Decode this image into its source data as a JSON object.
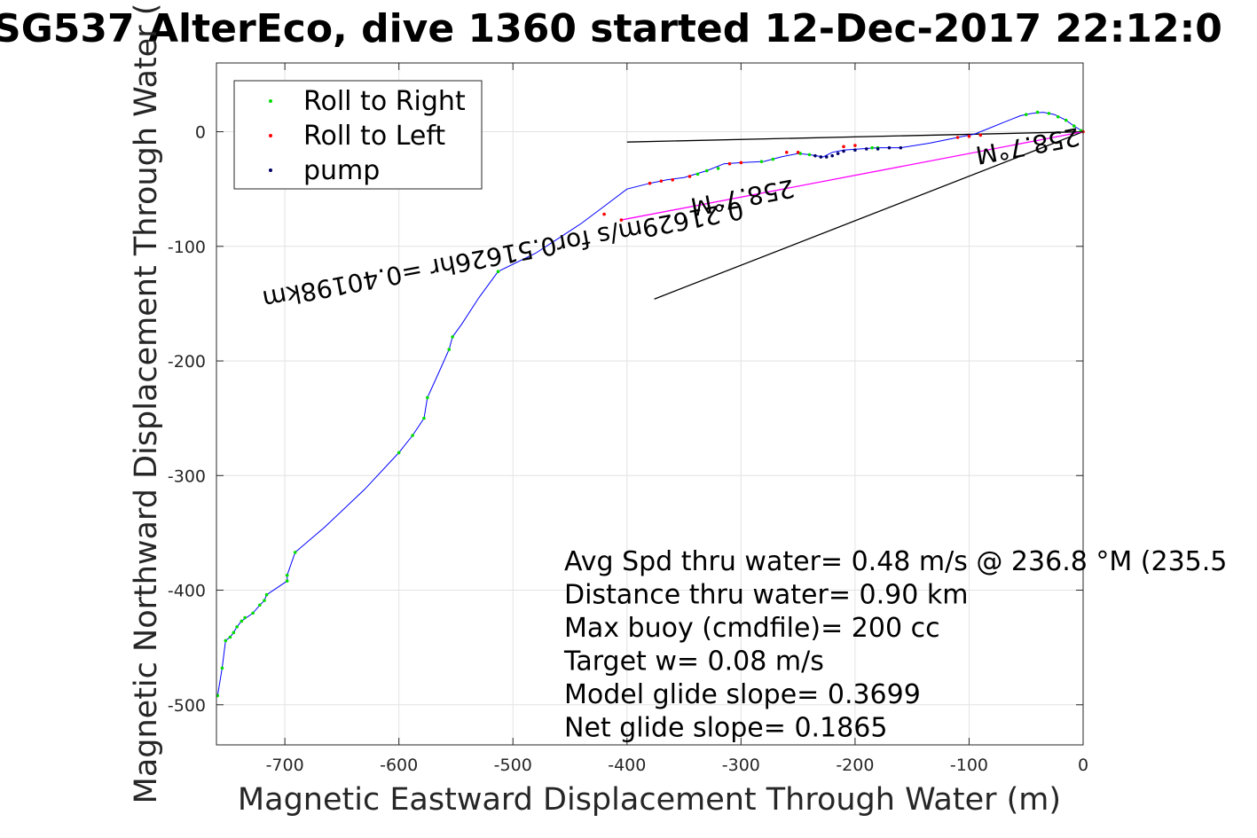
{
  "chart_data": {
    "type": "line",
    "title": "SG537 AlterEco, dive 1360 started 12-Dec-2017 22:12:0",
    "xlabel": "Magnetic Eastward Displacement Through Water (m)",
    "ylabel": "Magnetic Northward Displacement Through Water (",
    "xlim": [
      -760,
      0
    ],
    "ylim": [
      -535,
      60
    ],
    "xticks": [
      -700,
      -600,
      -500,
      -400,
      -300,
      -200,
      -100,
      0
    ],
    "yticks": [
      0,
      -100,
      -200,
      -300,
      -400,
      -500
    ],
    "grid": true,
    "legend_position": "top-left",
    "legend": [
      {
        "label": "Roll to Right",
        "color": "#00dd00"
      },
      {
        "label": "Roll to Left",
        "color": "#ff0000"
      },
      {
        "label": "pump",
        "color": "#000066"
      }
    ],
    "track": {
      "name": "track",
      "color": "#0000ff",
      "points": [
        [
          0,
          0
        ],
        [
          -8,
          5
        ],
        [
          -15,
          10
        ],
        [
          -25,
          15
        ],
        [
          -35,
          17
        ],
        [
          -45,
          16
        ],
        [
          -55,
          14
        ],
        [
          -70,
          8
        ],
        [
          -85,
          2
        ],
        [
          -95,
          -2
        ],
        [
          -110,
          -5
        ],
        [
          -135,
          -10
        ],
        [
          -160,
          -14
        ],
        [
          -180,
          -14
        ],
        [
          -195,
          -15
        ],
        [
          -210,
          -16
        ],
        [
          -220,
          -18
        ],
        [
          -228,
          -22
        ],
        [
          -240,
          -20
        ],
        [
          -250,
          -19
        ],
        [
          -265,
          -22
        ],
        [
          -280,
          -26
        ],
        [
          -300,
          -27
        ],
        [
          -315,
          -28
        ],
        [
          -330,
          -34
        ],
        [
          -350,
          -40
        ],
        [
          -365,
          -42
        ],
        [
          -380,
          -45
        ],
        [
          -400,
          -50
        ],
        [
          -420,
          -65
        ],
        [
          -440,
          -80
        ],
        [
          -460,
          -93
        ],
        [
          -480,
          -106
        ],
        [
          -513,
          -122
        ],
        [
          -530,
          -145
        ],
        [
          -545,
          -168
        ],
        [
          -553,
          -179
        ],
        [
          -556,
          -190
        ],
        [
          -565,
          -210
        ],
        [
          -575,
          -232
        ],
        [
          -578,
          -250
        ],
        [
          -588,
          -265
        ],
        [
          -600,
          -280
        ],
        [
          -630,
          -312
        ],
        [
          -665,
          -345
        ],
        [
          -691,
          -367
        ],
        [
          -698,
          -387
        ],
        [
          -698,
          -392
        ],
        [
          -716,
          -404
        ],
        [
          -718,
          -409
        ],
        [
          -722,
          -413
        ],
        [
          -728,
          -420
        ],
        [
          -738,
          -427
        ],
        [
          -742,
          -432
        ],
        [
          -745,
          -437
        ],
        [
          -748,
          -441
        ],
        [
          -752,
          -444
        ],
        [
          -755,
          -468
        ],
        [
          -759,
          -492
        ]
      ]
    },
    "roll_right_points": [
      [
        -2,
        1
      ],
      [
        -8,
        5
      ],
      [
        -15,
        10
      ],
      [
        -22,
        13
      ],
      [
        -30,
        16
      ],
      [
        -40,
        17
      ],
      [
        -50,
        15
      ],
      [
        -180,
        -14
      ],
      [
        -185,
        -14
      ],
      [
        -240,
        -20
      ],
      [
        -248,
        -19
      ],
      [
        -272,
        -24
      ],
      [
        -282,
        -26
      ],
      [
        -320,
        -32
      ],
      [
        -330,
        -34
      ],
      [
        -338,
        -37
      ],
      [
        -513,
        -122
      ],
      [
        -553,
        -179
      ],
      [
        -556,
        -190
      ],
      [
        -575,
        -232
      ],
      [
        -578,
        -250
      ],
      [
        -588,
        -265
      ],
      [
        -600,
        -280
      ],
      [
        -691,
        -367
      ],
      [
        -698,
        -387
      ],
      [
        -698,
        -392
      ],
      [
        -716,
        -404
      ],
      [
        -718,
        -409
      ],
      [
        -722,
        -413
      ],
      [
        -728,
        -420
      ],
      [
        -735,
        -424
      ],
      [
        -738,
        -427
      ],
      [
        -742,
        -432
      ],
      [
        -745,
        -437
      ],
      [
        -748,
        -441
      ],
      [
        -752,
        -444
      ],
      [
        -755,
        -468
      ],
      [
        -759,
        -492
      ]
    ],
    "roll_left_points": [
      [
        -90,
        -3
      ],
      [
        -100,
        -4
      ],
      [
        -110,
        -5
      ],
      [
        -300,
        -27
      ],
      [
        -310,
        -28
      ],
      [
        -345,
        -39
      ],
      [
        -360,
        -42
      ],
      [
        -370,
        -43
      ],
      [
        -380,
        -45
      ],
      [
        -200,
        -12
      ],
      [
        -210,
        -13
      ],
      [
        -250,
        -18
      ],
      [
        -260,
        -18
      ],
      [
        0,
        0
      ],
      [
        -405,
        -77
      ],
      [
        -420,
        -72
      ]
    ],
    "pump_points": [
      [
        -160,
        -14
      ],
      [
        -170,
        -14
      ],
      [
        -180,
        -15
      ],
      [
        -190,
        -15
      ],
      [
        -200,
        -16
      ],
      [
        -210,
        -17
      ],
      [
        -215,
        -19
      ],
      [
        -220,
        -21
      ],
      [
        -225,
        -22
      ],
      [
        -230,
        -22
      ],
      [
        -235,
        -21
      ]
    ],
    "reference_lines": [
      {
        "from": [
          0,
          0
        ],
        "to": [
          -400,
          -9
        ],
        "color": "#000000"
      },
      {
        "from": [
          0,
          0
        ],
        "to": [
          -376,
          -146
        ],
        "color": "#000000"
      },
      {
        "from": [
          0,
          0
        ],
        "to": [
          -405,
          -77
        ],
        "color": "#ff00ff"
      }
    ],
    "rotated_annotations": [
      {
        "text": "0.21629m/s for0.51626hr =0.40198km",
        "anchor": [
          -510,
          -100
        ],
        "angle": 169.3
      },
      {
        "text": "258.7°M",
        "anchor": [
          -300,
          -50
        ],
        "angle": 169.3
      },
      {
        "text": "258.7°M",
        "anchor": [
          -50,
          -5
        ],
        "angle": 169.3
      }
    ],
    "stats": [
      "Avg Spd thru water=  0.48 m/s @ 236.8 °M (235.5",
      "Distance thru water=  0.90 km",
      "Max buoy (cmdfile)= 200 cc",
      "Target w= 0.08 m/s",
      "Model glide slope= 0.3699",
      "Net glide slope= 0.1865"
    ]
  }
}
